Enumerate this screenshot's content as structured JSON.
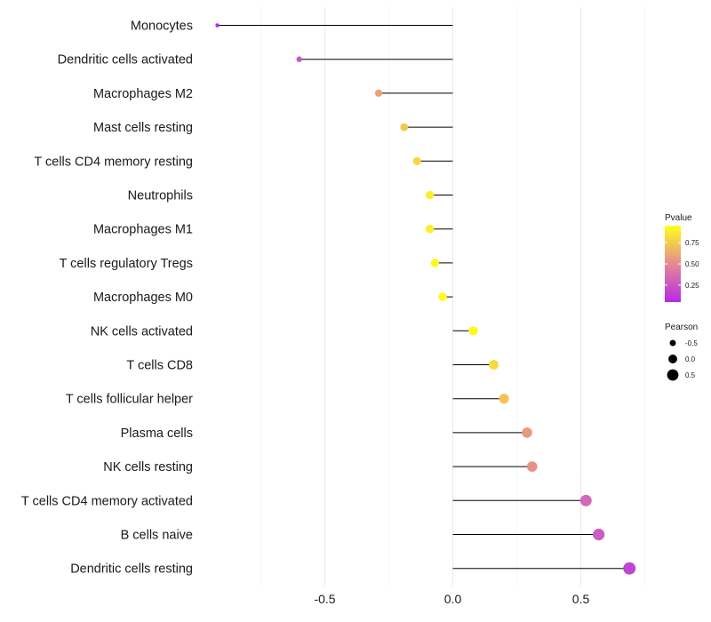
{
  "chart_data": {
    "type": "lollipop",
    "categories": [
      "Monocytes",
      "Dendritic cells activated",
      "Macrophages M2",
      "Mast cells resting",
      "T cells CD4 memory resting",
      "Neutrophils",
      "Macrophages M1",
      "T cells regulatory  Tregs ",
      "Macrophages M0",
      "NK cells activated",
      "T cells CD8",
      "T cells follicular helper",
      "Plasma cells",
      "NK cells resting",
      "T cells CD4 memory activated",
      "B cells naive",
      "Dendritic cells resting"
    ],
    "values": [
      -0.92,
      -0.6,
      -0.29,
      -0.19,
      -0.14,
      -0.09,
      -0.09,
      -0.07,
      -0.04,
      0.08,
      0.16,
      0.2,
      0.29,
      0.31,
      0.52,
      0.57,
      0.69
    ],
    "pvalues": [
      0.05,
      0.3,
      0.58,
      0.72,
      0.78,
      0.88,
      0.88,
      0.92,
      0.93,
      0.92,
      0.8,
      0.7,
      0.55,
      0.52,
      0.38,
      0.33,
      0.2
    ],
    "xlim": [
      -1.0,
      0.75
    ],
    "x_ticks": [
      -0.5,
      0.0,
      0.5
    ],
    "x_tick_labels": [
      "-0.5",
      "0.0",
      "0.5"
    ],
    "title": "",
    "xlabel": "",
    "ylabel": "",
    "grid": true,
    "legend_color": {
      "title": "Pvalue",
      "ticks": [
        0.75,
        0.5,
        0.25
      ],
      "tick_labels": [
        "0.75",
        "0.50",
        "0.25"
      ],
      "range": [
        0.05,
        0.95
      ],
      "color_low": "#b629e8",
      "color_high": "#ffff1a"
    },
    "legend_size": {
      "title": "Pearson",
      "values": [
        -0.5,
        0.0,
        0.5
      ],
      "labels": [
        "-0.5",
        "0.0",
        "0.5"
      ]
    }
  }
}
